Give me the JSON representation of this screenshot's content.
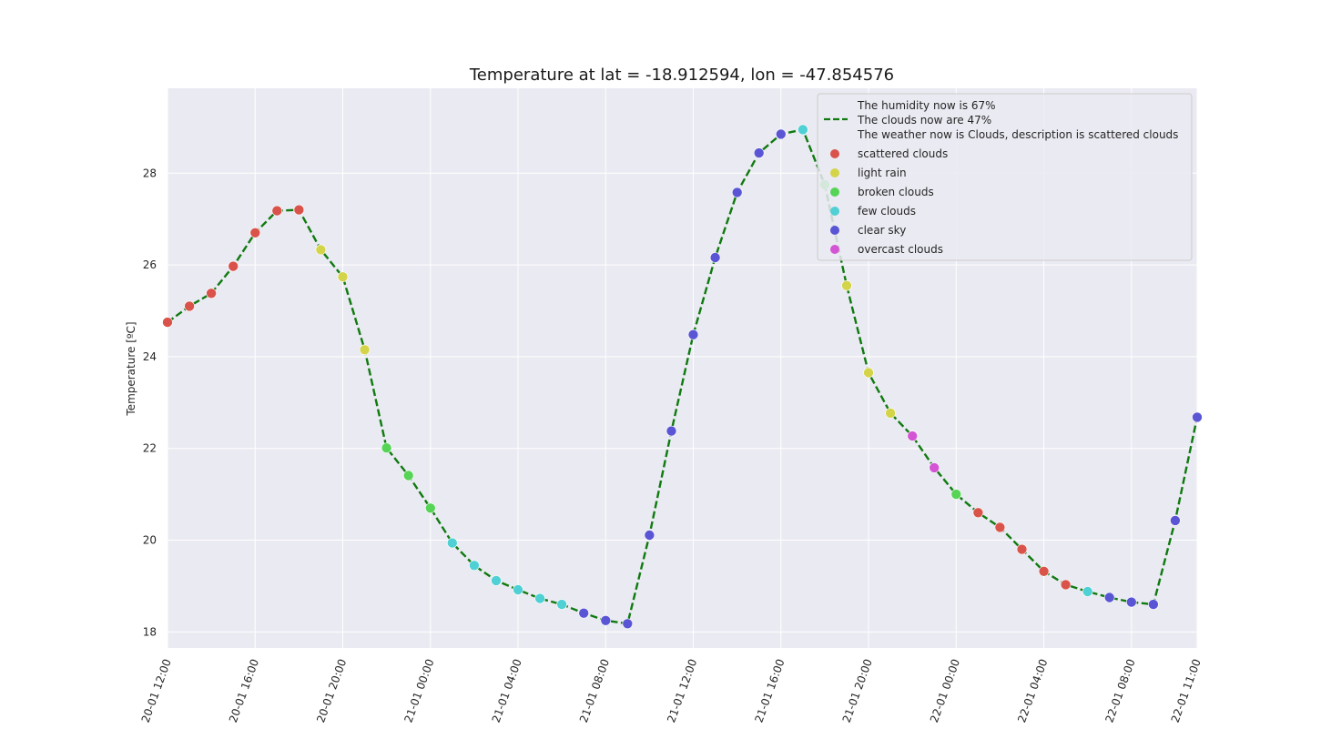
{
  "chart_data": {
    "type": "line",
    "title": "Temperature at lat = -18.912594, lon = -47.854576",
    "xlabel": "",
    "ylabel": "Temperature [ºC]",
    "x_unit": "hours since 20-01 12:00",
    "xlim": [
      0,
      47
    ],
    "ylim": [
      17.65,
      29.85
    ],
    "y_ticks": [
      18,
      20,
      22,
      24,
      26,
      28
    ],
    "x_ticks": [
      {
        "x": 0,
        "label": "20-01 12:00"
      },
      {
        "x": 4,
        "label": "20-01 16:00"
      },
      {
        "x": 8,
        "label": "20-01 20:00"
      },
      {
        "x": 12,
        "label": "21-01 00:00"
      },
      {
        "x": 16,
        "label": "21-01 04:00"
      },
      {
        "x": 20,
        "label": "21-01 08:00"
      },
      {
        "x": 24,
        "label": "21-01 12:00"
      },
      {
        "x": 28,
        "label": "21-01 16:00"
      },
      {
        "x": 32,
        "label": "21-01 20:00"
      },
      {
        "x": 36,
        "label": "22-01 00:00"
      },
      {
        "x": 40,
        "label": "22-01 04:00"
      },
      {
        "x": 44,
        "label": "22-01 08:00"
      },
      {
        "x": 47,
        "label": "22-01 11:00"
      }
    ],
    "grid": true,
    "legend_position": "top-right",
    "line_label": "The humidity now is 67%\nThe clouds now are 47%\nThe weather now is Clouds, description is scattered clouds",
    "line_label_lines": [
      "The humidity now is 67%",
      "The clouds now are 47%",
      "The weather now is Clouds, description is scattered clouds"
    ],
    "line_color": "#0f7a0f",
    "categories": [
      {
        "name": "scattered clouds",
        "color": "#d9534a"
      },
      {
        "name": "light rain",
        "color": "#d4d44a"
      },
      {
        "name": "broken clouds",
        "color": "#55d455"
      },
      {
        "name": "few clouds",
        "color": "#4fd0d4"
      },
      {
        "name": "clear sky",
        "color": "#5a55d4"
      },
      {
        "name": "overcast clouds",
        "color": "#d455d4"
      }
    ],
    "points": [
      {
        "x": 0,
        "y": 24.75,
        "c": 0
      },
      {
        "x": 1,
        "y": 25.1,
        "c": 0
      },
      {
        "x": 2,
        "y": 25.38,
        "c": 0
      },
      {
        "x": 3,
        "y": 25.97,
        "c": 0
      },
      {
        "x": 4,
        "y": 26.7,
        "c": 0
      },
      {
        "x": 5,
        "y": 27.18,
        "c": 0
      },
      {
        "x": 6,
        "y": 27.2,
        "c": 0
      },
      {
        "x": 7,
        "y": 26.33,
        "c": 1
      },
      {
        "x": 8,
        "y": 25.74,
        "c": 1
      },
      {
        "x": 9,
        "y": 24.15,
        "c": 1
      },
      {
        "x": 10,
        "y": 22.01,
        "c": 2
      },
      {
        "x": 11,
        "y": 21.41,
        "c": 2
      },
      {
        "x": 12,
        "y": 20.7,
        "c": 2
      },
      {
        "x": 13,
        "y": 19.94,
        "c": 3
      },
      {
        "x": 14,
        "y": 19.45,
        "c": 3
      },
      {
        "x": 15,
        "y": 19.12,
        "c": 3
      },
      {
        "x": 16,
        "y": 18.92,
        "c": 3
      },
      {
        "x": 17,
        "y": 18.73,
        "c": 3
      },
      {
        "x": 18,
        "y": 18.6,
        "c": 3
      },
      {
        "x": 19,
        "y": 18.41,
        "c": 4
      },
      {
        "x": 20,
        "y": 18.25,
        "c": 4
      },
      {
        "x": 21,
        "y": 18.18,
        "c": 4
      },
      {
        "x": 22,
        "y": 20.11,
        "c": 4
      },
      {
        "x": 23,
        "y": 22.38,
        "c": 4
      },
      {
        "x": 24,
        "y": 24.48,
        "c": 4
      },
      {
        "x": 25,
        "y": 26.16,
        "c": 4
      },
      {
        "x": 26,
        "y": 27.58,
        "c": 4
      },
      {
        "x": 27,
        "y": 28.44,
        "c": 4
      },
      {
        "x": 28,
        "y": 28.85,
        "c": 4
      },
      {
        "x": 29,
        "y": 28.95,
        "c": 3
      },
      {
        "x": 30,
        "y": 27.75,
        "c": 2
      },
      {
        "x": 31,
        "y": 25.55,
        "c": 1
      },
      {
        "x": 32,
        "y": 23.65,
        "c": 1
      },
      {
        "x": 33,
        "y": 22.77,
        "c": 1
      },
      {
        "x": 34,
        "y": 22.27,
        "c": 5
      },
      {
        "x": 35,
        "y": 21.58,
        "c": 5
      },
      {
        "x": 36,
        "y": 21.0,
        "c": 2
      },
      {
        "x": 37,
        "y": 20.6,
        "c": 0
      },
      {
        "x": 38,
        "y": 20.28,
        "c": 0
      },
      {
        "x": 39,
        "y": 19.8,
        "c": 0
      },
      {
        "x": 40,
        "y": 19.32,
        "c": 0
      },
      {
        "x": 41,
        "y": 19.03,
        "c": 0
      },
      {
        "x": 42,
        "y": 18.88,
        "c": 3
      },
      {
        "x": 43,
        "y": 18.75,
        "c": 4
      },
      {
        "x": 44,
        "y": 18.65,
        "c": 4
      },
      {
        "x": 45,
        "y": 18.6,
        "c": 4
      },
      {
        "x": 46,
        "y": 20.43,
        "c": 4
      },
      {
        "x": 47,
        "y": 22.68,
        "c": 4
      }
    ]
  }
}
